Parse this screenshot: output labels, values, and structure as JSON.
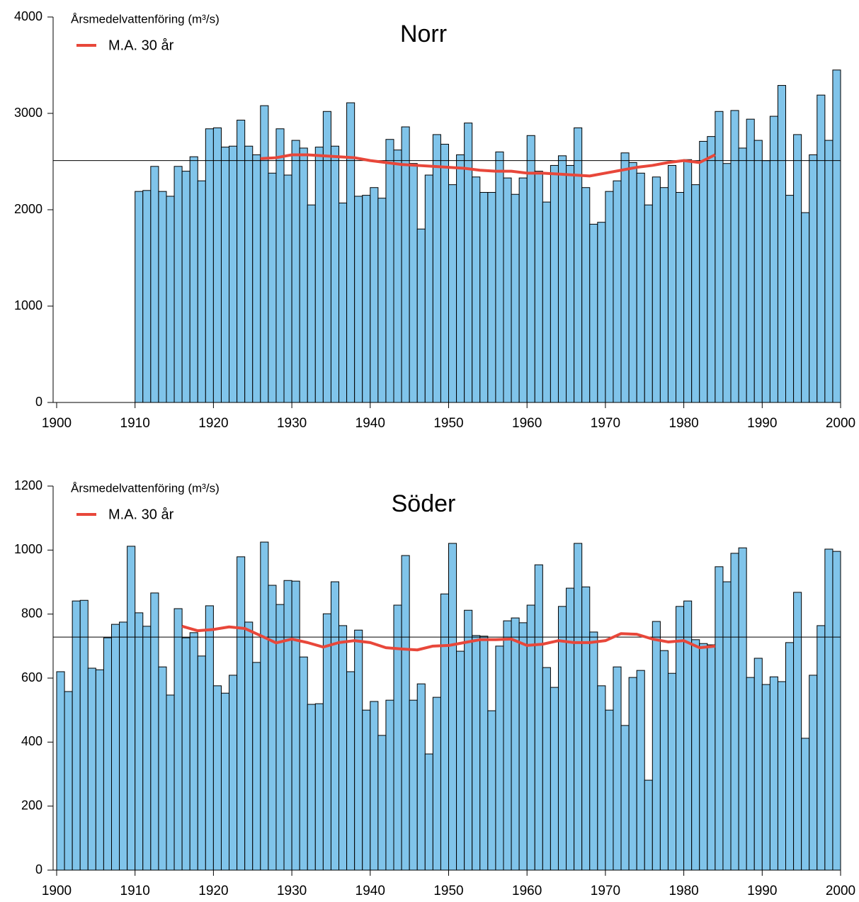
{
  "chart_data": [
    {
      "type": "bar",
      "title": "Norr",
      "ylabel": "Årsmedelvattenföring (m³/s)",
      "color": "#80c4ea",
      "x": [
        1910,
        1911,
        1912,
        1913,
        1914,
        1915,
        1916,
        1917,
        1918,
        1919,
        1920,
        1921,
        1922,
        1923,
        1924,
        1925,
        1926,
        1927,
        1928,
        1929,
        1930,
        1931,
        1932,
        1933,
        1934,
        1935,
        1936,
        1937,
        1938,
        1939,
        1940,
        1941,
        1942,
        1943,
        1944,
        1945,
        1946,
        1947,
        1948,
        1949,
        1950,
        1951,
        1952,
        1953,
        1954,
        1955,
        1956,
        1957,
        1958,
        1959,
        1960,
        1961,
        1962,
        1963,
        1964,
        1965,
        1966,
        1967,
        1968,
        1969,
        1970,
        1971,
        1972,
        1973,
        1974,
        1975,
        1976,
        1977,
        1978,
        1979,
        1980,
        1981,
        1982,
        1983,
        1984,
        1985,
        1986,
        1987,
        1988,
        1989,
        1990,
        1991,
        1992,
        1993,
        1994,
        1995,
        1996,
        1997,
        1998,
        1999
      ],
      "values": [
        2190,
        2200,
        2450,
        2190,
        2140,
        2450,
        2400,
        2550,
        2300,
        2840,
        2850,
        2650,
        2660,
        2930,
        2660,
        2570,
        3080,
        2380,
        2840,
        2360,
        2720,
        2640,
        2050,
        2650,
        3020,
        2660,
        2070,
        3110,
        2140,
        2150,
        2230,
        2120,
        2730,
        2620,
        2860,
        2480,
        1800,
        2360,
        2780,
        2680,
        2260,
        2570,
        2900,
        2340,
        2180,
        2180,
        2600,
        2330,
        2160,
        2330,
        2770,
        2400,
        2080,
        2460,
        2560,
        2460,
        2850,
        2230,
        1850,
        1870,
        2190,
        2300,
        2590,
        2490,
        2380,
        2050,
        2340,
        2230,
        2460,
        2180,
        2520,
        2260,
        2710,
        2760,
        3020,
        2480,
        3030,
        2640,
        2940,
        2720,
        2510,
        2970,
        3290,
        2150,
        2780,
        1970,
        2570,
        3190,
        2720,
        3450
      ],
      "series": [
        {
          "name": "M.A. 30 år",
          "color": "#e8473a",
          "x": [
            1926,
            1928,
            1930,
            1932,
            1934,
            1936,
            1938,
            1940,
            1942,
            1944,
            1946,
            1948,
            1950,
            1952,
            1954,
            1956,
            1958,
            1960,
            1962,
            1964,
            1966,
            1968,
            1970,
            1972,
            1974,
            1976,
            1978,
            1980,
            1982,
            1984
          ],
          "values": [
            2530,
            2540,
            2570,
            2570,
            2560,
            2550,
            2540,
            2510,
            2490,
            2470,
            2460,
            2450,
            2440,
            2430,
            2410,
            2400,
            2400,
            2380,
            2380,
            2370,
            2360,
            2350,
            2380,
            2410,
            2440,
            2460,
            2490,
            2510,
            2490,
            2570
          ]
        }
      ],
      "reference_line": 2510,
      "xlim": [
        1900,
        2000
      ],
      "xticks": [
        1900,
        1910,
        1920,
        1930,
        1940,
        1950,
        1960,
        1970,
        1980,
        1990,
        2000
      ],
      "ylim": [
        0,
        4000
      ],
      "yticks": [
        0,
        1000,
        2000,
        3000,
        4000
      ]
    },
    {
      "type": "bar",
      "title": "Söder",
      "ylabel": "Årsmedelvattenföring (m³/s)",
      "color": "#80c4ea",
      "x": [
        1900,
        1901,
        1902,
        1903,
        1904,
        1905,
        1906,
        1907,
        1908,
        1909,
        1910,
        1911,
        1912,
        1913,
        1914,
        1915,
        1916,
        1917,
        1918,
        1919,
        1920,
        1921,
        1922,
        1923,
        1924,
        1925,
        1926,
        1927,
        1928,
        1929,
        1930,
        1931,
        1932,
        1933,
        1934,
        1935,
        1936,
        1937,
        1938,
        1939,
        1940,
        1941,
        1942,
        1943,
        1944,
        1945,
        1946,
        1947,
        1948,
        1949,
        1950,
        1951,
        1952,
        1953,
        1954,
        1955,
        1956,
        1957,
        1958,
        1959,
        1960,
        1961,
        1962,
        1963,
        1964,
        1965,
        1966,
        1967,
        1968,
        1969,
        1970,
        1971,
        1972,
        1973,
        1974,
        1975,
        1976,
        1977,
        1978,
        1979,
        1980,
        1981,
        1982,
        1983,
        1984,
        1985,
        1986,
        1987,
        1988,
        1989,
        1990,
        1991,
        1992,
        1993,
        1994,
        1995,
        1996,
        1997,
        1998,
        1999
      ],
      "values": [
        620,
        558,
        841,
        843,
        631,
        626,
        726,
        768,
        775,
        1012,
        804,
        762,
        866,
        635,
        547,
        817,
        726,
        742,
        669,
        826,
        576,
        553,
        609,
        979,
        775,
        649,
        1025,
        890,
        830,
        905,
        903,
        666,
        518,
        520,
        801,
        901,
        764,
        620,
        750,
        500,
        527,
        421,
        531,
        828,
        983,
        531,
        582,
        363,
        540,
        863,
        1021,
        684,
        812,
        733,
        731,
        498,
        700,
        779,
        788,
        773,
        828,
        954,
        633,
        571,
        824,
        881,
        1021,
        885,
        744,
        576,
        500,
        635,
        452,
        602,
        624,
        281,
        777,
        686,
        615,
        824,
        841,
        720,
        708,
        704,
        948,
        901,
        990,
        1007,
        602,
        662,
        580,
        604,
        589,
        711,
        868,
        412,
        609,
        764,
        1003,
        996
      ],
      "series": [
        {
          "name": "M.A. 30 år",
          "color": "#e8473a",
          "x": [
            1916,
            1918,
            1920,
            1922,
            1924,
            1926,
            1928,
            1930,
            1932,
            1934,
            1936,
            1938,
            1940,
            1942,
            1944,
            1946,
            1948,
            1950,
            1952,
            1954,
            1956,
            1958,
            1960,
            1962,
            1964,
            1966,
            1968,
            1970,
            1972,
            1974,
            1976,
            1978,
            1980,
            1982,
            1984
          ],
          "values": [
            762,
            748,
            752,
            760,
            755,
            733,
            710,
            722,
            711,
            697,
            711,
            717,
            711,
            695,
            691,
            688,
            700,
            702,
            711,
            720,
            720,
            722,
            702,
            706,
            717,
            711,
            711,
            717,
            739,
            737,
            722,
            713,
            717,
            695,
            700
          ]
        }
      ],
      "reference_line": 728,
      "xlim": [
        1900,
        2000
      ],
      "xticks": [
        1900,
        1910,
        1920,
        1930,
        1940,
        1950,
        1960,
        1970,
        1980,
        1990,
        2000
      ],
      "ylim": [
        0,
        1200
      ],
      "yticks": [
        0,
        200,
        400,
        600,
        800,
        1000,
        1200
      ]
    }
  ]
}
